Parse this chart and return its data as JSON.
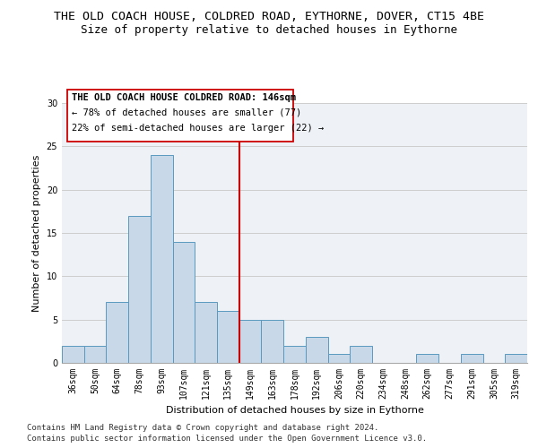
{
  "title1": "THE OLD COACH HOUSE, COLDRED ROAD, EYTHORNE, DOVER, CT15 4BE",
  "title2": "Size of property relative to detached houses in Eythorne",
  "xlabel": "Distribution of detached houses by size in Eythorne",
  "ylabel": "Number of detached properties",
  "categories": [
    "36sqm",
    "50sqm",
    "64sqm",
    "78sqm",
    "93sqm",
    "107sqm",
    "121sqm",
    "135sqm",
    "149sqm",
    "163sqm",
    "178sqm",
    "192sqm",
    "206sqm",
    "220sqm",
    "234sqm",
    "248sqm",
    "262sqm",
    "277sqm",
    "291sqm",
    "305sqm",
    "319sqm"
  ],
  "values": [
    2,
    2,
    7,
    17,
    24,
    14,
    7,
    6,
    5,
    5,
    2,
    3,
    1,
    2,
    0,
    0,
    1,
    0,
    1,
    0,
    1
  ],
  "bar_color": "#c8d8e8",
  "bar_edge_color": "#5a9abf",
  "vline_color": "#cc0000",
  "ylim": [
    0,
    30
  ],
  "yticks": [
    0,
    5,
    10,
    15,
    20,
    25,
    30
  ],
  "annotation_title": "THE OLD COACH HOUSE COLDRED ROAD: 146sqm",
  "annotation_line1": "← 78% of detached houses are smaller (77)",
  "annotation_line2": "22% of semi-detached houses are larger (22) →",
  "annotation_box_color": "#cc0000",
  "footnote1": "Contains HM Land Registry data © Crown copyright and database right 2024.",
  "footnote2": "Contains public sector information licensed under the Open Government Licence v3.0.",
  "bg_color": "#eef2f7",
  "grid_color": "#c8c8c8",
  "title1_fontsize": 9.5,
  "title2_fontsize": 9,
  "axis_label_fontsize": 8,
  "tick_fontsize": 7,
  "annotation_fontsize": 7.5,
  "footnote_fontsize": 6.5
}
